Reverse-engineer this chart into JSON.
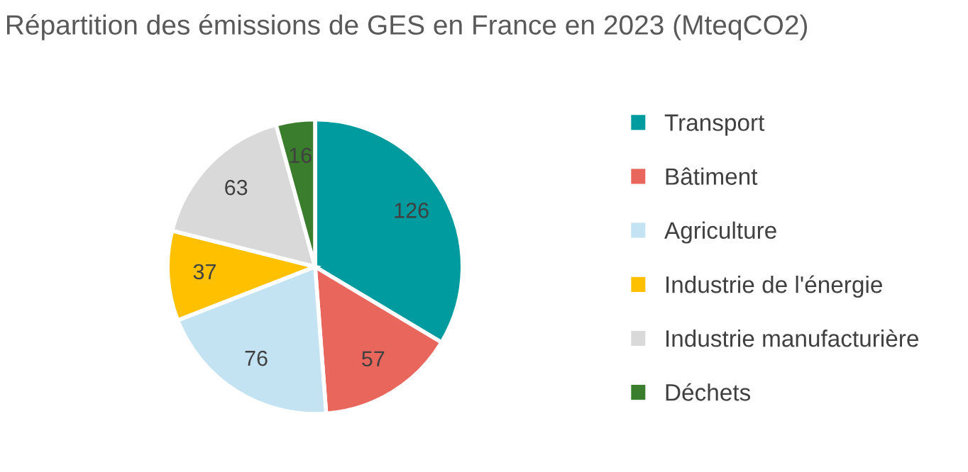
{
  "chart_data": {
    "type": "pie",
    "title": "Répartition des émissions de GES en France en 2023 (MteqCO2)",
    "categories": [
      "Transport",
      "Bâtiment",
      "Agriculture",
      "Industrie de l'énergie",
      "Industrie manufacturière",
      "Déchets"
    ],
    "values": [
      126,
      57,
      76,
      37,
      63,
      16
    ],
    "colors": [
      "#009b9e",
      "#e8665c",
      "#c3e3f3",
      "#ffc000",
      "#d9d9d9",
      "#3a7d2c"
    ],
    "data_labels": true,
    "legend": "right"
  }
}
